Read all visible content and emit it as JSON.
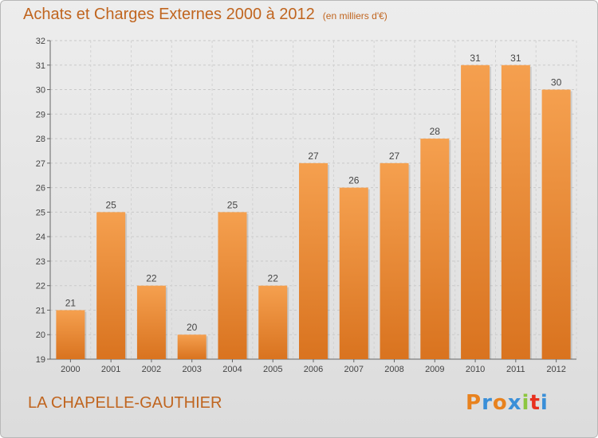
{
  "header": {
    "title": "Achats et Charges Externes 2000 à 2012",
    "subtitle": "(en milliers d'€)"
  },
  "footer": {
    "commune": "LA CHAPELLE-GAUTHIER",
    "logo": "Proxiti"
  },
  "colors": {
    "bar_top": "#f5a04f",
    "bar_bottom": "#d9731f",
    "title": "#c0651f",
    "logo": [
      "#e8821e",
      "#3a8fd8",
      "#e8821e",
      "#3a8fd8",
      "#8cc63f",
      "#e8301e",
      "#3a8fd8"
    ]
  },
  "chart_data": {
    "type": "bar",
    "categories": [
      "2000",
      "2001",
      "2002",
      "2003",
      "2004",
      "2005",
      "2006",
      "2007",
      "2008",
      "2009",
      "2010",
      "2011",
      "2012"
    ],
    "values": [
      21,
      25,
      22,
      20,
      25,
      22,
      27,
      26,
      27,
      28,
      31,
      31,
      30
    ],
    "ylim": [
      19,
      32
    ],
    "yticks": [
      19,
      20,
      21,
      22,
      23,
      24,
      25,
      26,
      27,
      28,
      29,
      30,
      31,
      32
    ],
    "grid": true,
    "xlabel": "",
    "ylabel": ""
  }
}
